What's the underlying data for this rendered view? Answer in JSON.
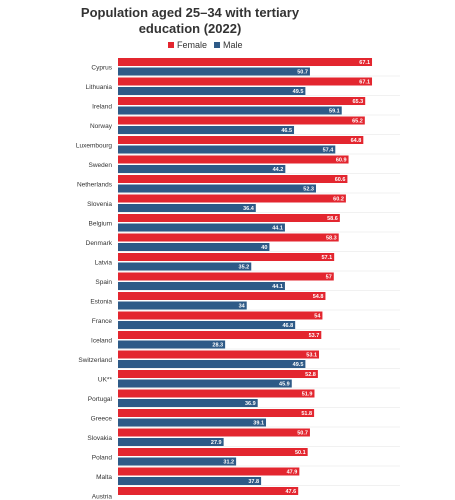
{
  "chart_data": {
    "type": "bar",
    "orientation": "horizontal",
    "title": "Population aged 25–34 with tertiary education (2022)",
    "categories": [
      "Cyprus",
      "Lithuania",
      "Ireland",
      "Norway",
      "Luxembourg",
      "Sweden",
      "Netherlands",
      "Slovenia",
      "Belgium",
      "Denmark",
      "Latvia",
      "Spain",
      "Estonia",
      "France",
      "Iceland",
      "Switzerland",
      "UK**",
      "Portugal",
      "Greece",
      "Slovakia",
      "Poland",
      "Malta",
      "Austria"
    ],
    "series": [
      {
        "name": "Female",
        "color": "#e3262f",
        "values": [
          67.1,
          67.1,
          65.3,
          65.2,
          64.8,
          60.9,
          60.6,
          60.2,
          58.6,
          58.3,
          57.1,
          57,
          54.8,
          54,
          53.7,
          53.1,
          52.8,
          51.9,
          51.8,
          50.7,
          50.1,
          47.9,
          47.6
        ]
      },
      {
        "name": "Male",
        "color": "#2e5a87",
        "values": [
          50.7,
          49.5,
          59.1,
          46.5,
          57.4,
          44.2,
          52.3,
          36.4,
          44.1,
          40,
          35.2,
          44.1,
          34,
          46.8,
          28.3,
          49.5,
          45.9,
          36.9,
          39.1,
          27.9,
          31.2,
          37.8,
          null
        ]
      }
    ],
    "xlim": [
      0,
      70
    ],
    "grid": true
  }
}
